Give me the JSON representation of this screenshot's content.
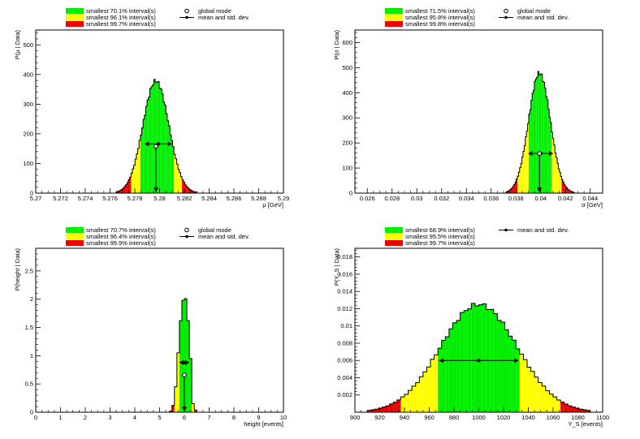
{
  "colors": {
    "green": "#00ee00",
    "yellow": "#ffff00",
    "red": "#ee0000",
    "outline": "#000000"
  },
  "chart_data": [
    {
      "type": "histogram",
      "xlabel": "μ [GeV]",
      "ylabel": "P(μ | Data)",
      "xlim": [
        5.27,
        5.29
      ],
      "ylim": [
        0,
        550
      ],
      "xticks": [
        "5.27",
        "5.272",
        "5.274",
        "5.276",
        "5.278",
        "5.28",
        "5.282",
        "5.284",
        "5.286",
        "5.288",
        "5.29"
      ],
      "xtick_values": [
        5.27,
        5.272,
        5.274,
        5.276,
        5.278,
        5.28,
        5.282,
        5.284,
        5.286,
        5.288,
        5.29
      ],
      "yticks": [
        "0",
        "100",
        "200",
        "300",
        "400",
        "500"
      ],
      "ytick_values": [
        0,
        100,
        200,
        300,
        400,
        500
      ],
      "peak": 378,
      "center": 5.2797,
      "sigma": 0.00105,
      "green_range": [
        5.2784,
        5.2812
      ],
      "yellow_range": [
        5.2777,
        5.2818
      ],
      "red_range": [
        5.2765,
        5.283
      ],
      "global_mode": {
        "x": 5.2797,
        "y": 158
      },
      "mean": 5.2799,
      "stddev": 0.0011,
      "mean_marker_y": 166,
      "legend": [
        {
          "label": "smallest 70.1% interval(s)",
          "color": "green"
        },
        {
          "label": "smallest 96.1% interval(s)",
          "color": "yellow"
        },
        {
          "label": "smallest 99.7% interval(s)",
          "color": "red"
        },
        {
          "label": "global mode",
          "marker": "open-circle"
        },
        {
          "label": "mean and std. dev.",
          "marker": "errorbar"
        }
      ]
    },
    {
      "type": "histogram",
      "xlabel": "σ [GeV]",
      "ylabel": "P(σ | Data)",
      "xlim": [
        0.025,
        0.045
      ],
      "ylim": [
        0,
        650
      ],
      "xticks": [
        "0.026",
        "0.028",
        "0.03",
        "0.032",
        "0.034",
        "0.036",
        "0.038",
        "0.04",
        "0.042",
        "0.044"
      ],
      "xtick_values": [
        0.026,
        0.028,
        0.03,
        0.032,
        0.034,
        0.036,
        0.038,
        0.04,
        0.042,
        0.044
      ],
      "yticks": [
        "0",
        "100",
        "200",
        "300",
        "400",
        "500",
        "600"
      ],
      "ytick_values": [
        0,
        100,
        200,
        300,
        400,
        500,
        600
      ],
      "peak": 478,
      "center": 0.0399,
      "sigma": 0.00088,
      "green_range": [
        0.039,
        0.0409
      ],
      "yellow_range": [
        0.0381,
        0.0417
      ],
      "red_range": [
        0.0372,
        0.0427
      ],
      "global_mode": {
        "x": 0.0399,
        "y": 158
      },
      "mean": 0.04,
      "stddev": 0.001,
      "mean_marker_y": 158,
      "legend": [
        {
          "label": "smallest 71.5% interval(s)",
          "color": "green"
        },
        {
          "label": "smallest 95.8% interval(s)",
          "color": "yellow"
        },
        {
          "label": "smallest 99.8% interval(s)",
          "color": "red"
        },
        {
          "label": "global mode",
          "marker": "open-circle"
        },
        {
          "label": "mean and std. dev.",
          "marker": "errorbar"
        }
      ]
    },
    {
      "type": "histogram",
      "xlabel": "height [events]",
      "ylabel": "P(height | Data)",
      "xlim": [
        0,
        10
      ],
      "ylim": [
        0,
        2.9
      ],
      "xticks": [
        "0",
        "1",
        "2",
        "3",
        "4",
        "5",
        "6",
        "7",
        "8",
        "9",
        "10"
      ],
      "xtick_values": [
        0,
        1,
        2,
        3,
        4,
        5,
        6,
        7,
        8,
        9,
        10
      ],
      "yticks": [
        "0",
        "0.5",
        "1",
        "1.5",
        "2",
        "2.5"
      ],
      "ytick_values": [
        0,
        0.5,
        1,
        1.5,
        2,
        2.5
      ],
      "bin_width": 0.1,
      "bins_x0": [
        5.4,
        5.5,
        5.6,
        5.7,
        5.8,
        5.9,
        6.0,
        6.1,
        6.2,
        6.3,
        6.4
      ],
      "bins_y": [
        0.02,
        0.12,
        0.45,
        1.05,
        1.62,
        1.98,
        2.01,
        1.62,
        0.95,
        0.15,
        0.04
      ],
      "green_range": [
        5.8,
        6.3
      ],
      "yellow_range": [
        5.6,
        6.4
      ],
      "red_range": [
        5.4,
        6.5
      ],
      "global_mode": {
        "x": 6.0,
        "y": 0.66
      },
      "mean": 6.0,
      "stddev": 0.2,
      "mean_marker_y": 0.88,
      "legend": [
        {
          "label": "smallest 70.7% interval(s)",
          "color": "green"
        },
        {
          "label": "smallest 96.4% interval(s)",
          "color": "yellow"
        },
        {
          "label": "smallest 99.9% interval(s)",
          "color": "red"
        },
        {
          "label": "global mode",
          "marker": "open-circle"
        },
        {
          "label": "mean and std. dev.",
          "marker": "errorbar"
        }
      ]
    },
    {
      "type": "histogram",
      "xlabel": "Y_S [events]",
      "ylabel": "P(Y_S | Data)",
      "xlim": [
        900,
        1100
      ],
      "ylim": [
        0,
        0.019
      ],
      "xticks": [
        "900",
        "920",
        "940",
        "960",
        "980",
        "1000",
        "1020",
        "1040",
        "1060",
        "1080",
        "1100"
      ],
      "xtick_values": [
        900,
        920,
        940,
        960,
        980,
        1000,
        1020,
        1040,
        1060,
        1080,
        1100
      ],
      "yticks": [
        "0.002",
        "0.004",
        "0.006",
        "0.008",
        "0.01",
        "0.012",
        "0.014",
        "0.016",
        "0.018"
      ],
      "ytick_values": [
        0.002,
        0.004,
        0.006,
        0.008,
        0.01,
        0.012,
        0.014,
        0.016,
        0.018
      ],
      "peak": 0.0125,
      "center": 1000,
      "sigma": 31,
      "green_range": [
        968,
        1033
      ],
      "yellow_range": [
        938,
        1065
      ],
      "red_range": [
        910,
        1090
      ],
      "mean": 1000,
      "stddev": 32,
      "mean_marker_y": 0.006,
      "legend": [
        {
          "label": "smallest 68.9% interval(s)",
          "color": "green"
        },
        {
          "label": "smallest 95.5% interval(s)",
          "color": "yellow"
        },
        {
          "label": "smallest 99.7% interval(s)",
          "color": "red"
        },
        {
          "label": "mean and std. dev.",
          "marker": "errorbar"
        }
      ]
    }
  ]
}
